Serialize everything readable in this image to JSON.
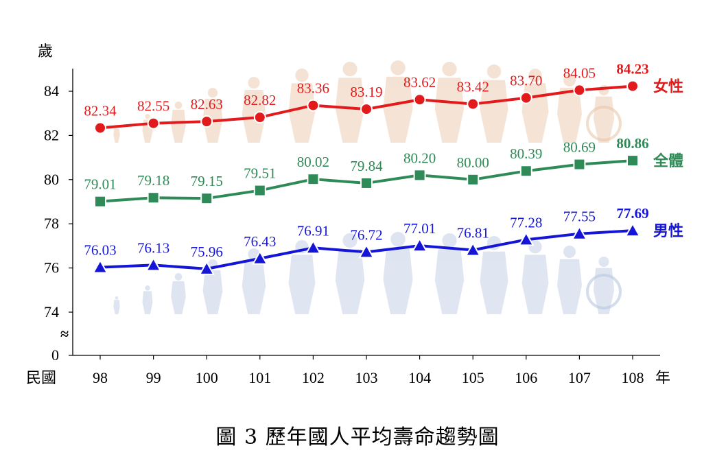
{
  "caption": "圖 3 歷年國人平均壽命趨勢圖",
  "chart_data": {
    "type": "line",
    "ylabel": "歲",
    "xlabel_prefix": "民國",
    "xlabel_suffix": "年",
    "y_break_mark": "≈",
    "categories": [
      "98",
      "99",
      "100",
      "101",
      "102",
      "103",
      "104",
      "105",
      "106",
      "107",
      "108"
    ],
    "yticks": [
      74,
      76,
      78,
      80,
      82,
      84
    ],
    "y_base_tick": "0",
    "ylim": [
      73,
      85.5
    ],
    "grid": false,
    "series": [
      {
        "name": "女性",
        "color": "#e31a1c",
        "marker": "circle",
        "values": [
          82.34,
          82.55,
          82.63,
          82.82,
          83.36,
          83.19,
          83.62,
          83.42,
          83.7,
          84.05,
          84.23
        ],
        "labels": [
          "82.34",
          "82.55",
          "82.63",
          "82.82",
          "83.36",
          "83.19",
          "83.62",
          "83.42",
          "83.70",
          "84.05",
          "84.23"
        ]
      },
      {
        "name": "全體",
        "color": "#2e8b57",
        "marker": "square",
        "values": [
          79.01,
          79.18,
          79.15,
          79.51,
          80.02,
          79.84,
          80.2,
          80.0,
          80.39,
          80.69,
          80.86
        ],
        "labels": [
          "79.01",
          "79.18",
          "79.15",
          "79.51",
          "80.02",
          "79.84",
          "80.20",
          "80.00",
          "80.39",
          "80.69",
          "80.86"
        ]
      },
      {
        "name": "男性",
        "color": "#1515d8",
        "marker": "triangle",
        "values": [
          76.03,
          76.13,
          75.96,
          76.43,
          76.91,
          76.72,
          77.01,
          76.81,
          77.28,
          77.55,
          77.69
        ],
        "labels": [
          "76.03",
          "76.13",
          "75.96",
          "76.43",
          "76.91",
          "76.72",
          "77.01",
          "76.81",
          "77.28",
          "77.55",
          "77.69"
        ]
      }
    ]
  }
}
